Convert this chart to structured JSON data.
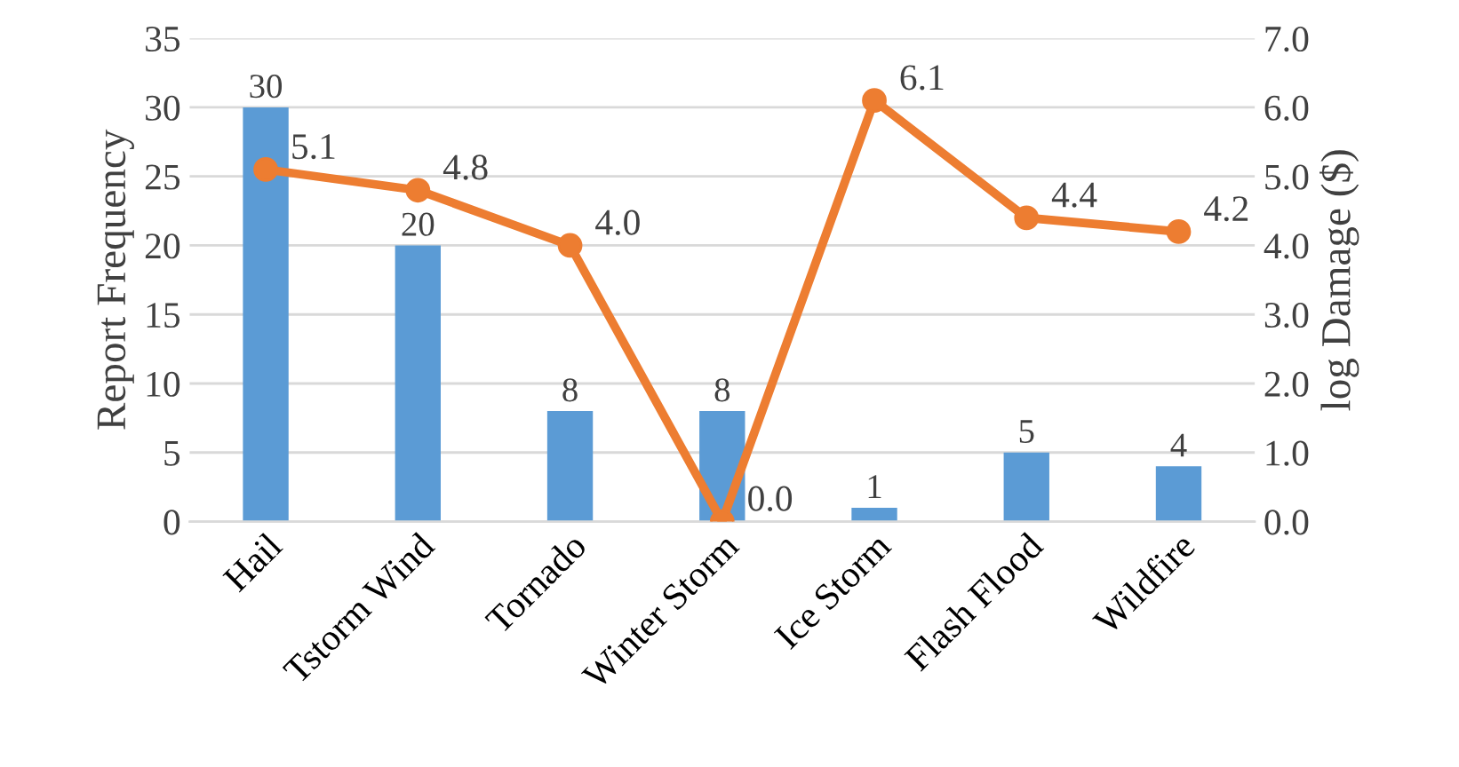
{
  "chart_data": {
    "type": "bar",
    "categories": [
      "Hail",
      "Tstorm Wind",
      "Tornado",
      "Winter Storm",
      "Ice Storm",
      "Flash Flood",
      "Wildfire"
    ],
    "ylabel": "Report Frequency",
    "y2label": "log Damage ($)",
    "ylim": [
      0,
      35
    ],
    "yticks": [
      0,
      5,
      10,
      15,
      20,
      25,
      30,
      35
    ],
    "y2lim": [
      0,
      7
    ],
    "y2ticks": [
      {
        "value": 0,
        "label": "0.0"
      },
      {
        "value": 1,
        "label": "1.0"
      },
      {
        "value": 2,
        "label": "2.0"
      },
      {
        "value": 3,
        "label": "3.0"
      },
      {
        "value": 4,
        "label": "4.0"
      },
      {
        "value": 5,
        "label": "5.0"
      },
      {
        "value": 6,
        "label": "6.0"
      },
      {
        "value": 7,
        "label": "7.0"
      }
    ],
    "grid": "y",
    "series": [
      {
        "color": "#5b9bd5",
        "values": [
          30,
          20,
          8,
          8,
          1,
          5,
          4
        ],
        "value_labels": [
          "30",
          "20",
          "8",
          "8",
          "1",
          "5",
          "4"
        ]
      },
      {
        "type": "line",
        "axis": "y2",
        "color": "#ed7d31",
        "marker": "circle",
        "line_style": "solid",
        "values": [
          5.1,
          4.8,
          4.0,
          0.0,
          6.1,
          4.4,
          4.2
        ],
        "value_labels": [
          "5.1",
          "4.8",
          "4.0",
          "0.0",
          "6.1",
          "4.4",
          "4.2"
        ]
      }
    ]
  }
}
